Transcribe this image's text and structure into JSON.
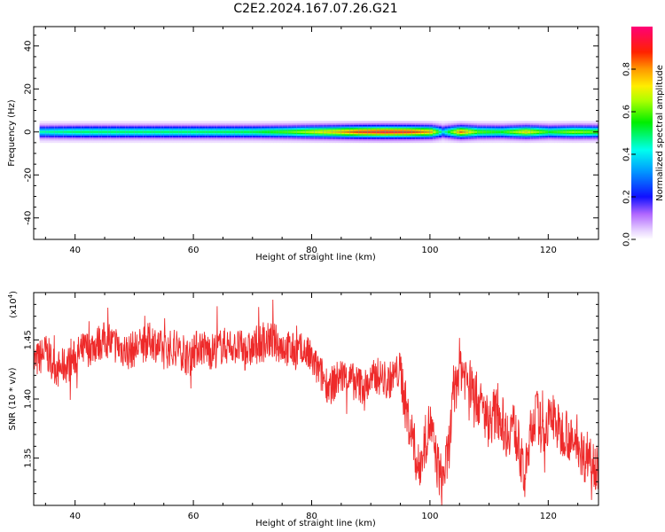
{
  "figure": {
    "title": "C2E2.2024.167.07.26.G21"
  },
  "chart_data": [
    {
      "type": "heatmap",
      "xlabel": "Height of straight line (km)",
      "ylabel": "Frequency (Hz)",
      "xlim": [
        33,
        128.5
      ],
      "ylim": [
        -50,
        49
      ],
      "x_ticks": [
        40,
        60,
        80,
        100,
        120
      ],
      "y_ticks": [
        -40,
        -20,
        0,
        20,
        40
      ],
      "grid": false,
      "colormap": "rainbow",
      "band": {
        "x_start": 34,
        "x_end": 128.5,
        "center_frequency": 0,
        "half_width": 3,
        "amplitude_profile": [
          {
            "x": 34,
            "v": 0.45
          },
          {
            "x": 40,
            "v": 0.5
          },
          {
            "x": 50,
            "v": 0.5
          },
          {
            "x": 60,
            "v": 0.5
          },
          {
            "x": 70,
            "v": 0.52
          },
          {
            "x": 76,
            "v": 0.6
          },
          {
            "x": 80,
            "v": 0.7
          },
          {
            "x": 84,
            "v": 0.78
          },
          {
            "x": 88,
            "v": 0.9
          },
          {
            "x": 92,
            "v": 0.95
          },
          {
            "x": 96,
            "v": 0.92
          },
          {
            "x": 100,
            "v": 0.8
          },
          {
            "x": 102,
            "v": 0.4
          },
          {
            "x": 105,
            "v": 0.85
          },
          {
            "x": 108,
            "v": 0.6
          },
          {
            "x": 112,
            "v": 0.55
          },
          {
            "x": 116,
            "v": 0.75
          },
          {
            "x": 120,
            "v": 0.55
          },
          {
            "x": 124,
            "v": 0.65
          },
          {
            "x": 128.5,
            "v": 0.6
          }
        ]
      }
    },
    {
      "type": "line",
      "xlabel": "Height of straight line (km)",
      "ylabel": "SNR (10 * v/v)",
      "scale_note": "(x10",
      "scale_exp": "4",
      "scale_close": ")",
      "xlim": [
        33,
        128.5
      ],
      "ylim": [
        1.31,
        1.49
      ],
      "x_ticks": [
        40,
        60,
        80,
        100,
        120
      ],
      "y_ticks": [
        1.35,
        1.4,
        1.45
      ],
      "y_tick_labels": [
        "1.35",
        "1.40",
        "1.45"
      ],
      "color": "#ee2a2a",
      "grid": false,
      "series": [
        {
          "x": [
            33,
            35,
            37,
            39,
            41,
            43,
            45,
            47,
            49,
            51,
            53,
            55,
            57,
            59,
            61,
            63,
            65,
            67,
            69,
            71,
            73,
            75,
            77,
            79,
            81,
            83,
            85,
            87,
            89,
            91,
            93,
            95,
            96,
            97,
            98,
            99,
            100,
            101,
            102,
            103,
            104,
            105,
            106,
            107,
            108,
            109,
            110,
            111,
            112,
            113,
            114,
            115,
            116,
            117,
            118,
            119,
            120,
            121,
            122,
            123,
            124,
            125,
            126,
            127,
            128.5
          ],
          "values": [
            1.43,
            1.44,
            1.425,
            1.43,
            1.44,
            1.445,
            1.45,
            1.445,
            1.44,
            1.445,
            1.45,
            1.44,
            1.445,
            1.435,
            1.445,
            1.44,
            1.445,
            1.445,
            1.44,
            1.445,
            1.45,
            1.445,
            1.44,
            1.44,
            1.425,
            1.41,
            1.42,
            1.415,
            1.41,
            1.42,
            1.415,
            1.425,
            1.39,
            1.37,
            1.34,
            1.36,
            1.38,
            1.35,
            1.33,
            1.35,
            1.4,
            1.43,
            1.42,
            1.41,
            1.4,
            1.39,
            1.38,
            1.39,
            1.385,
            1.37,
            1.38,
            1.36,
            1.33,
            1.37,
            1.39,
            1.37,
            1.38,
            1.385,
            1.37,
            1.375,
            1.36,
            1.365,
            1.35,
            1.355,
            1.34
          ]
        }
      ]
    }
  ],
  "colorbar": {
    "label": "Normalized spectral amplitude",
    "ticks": [
      0.0,
      0.2,
      0.4,
      0.6,
      0.8
    ],
    "tick_labels": [
      "0.0",
      "0.2",
      "0.4",
      "0.6",
      "0.8"
    ],
    "range": [
      0,
      1
    ]
  }
}
